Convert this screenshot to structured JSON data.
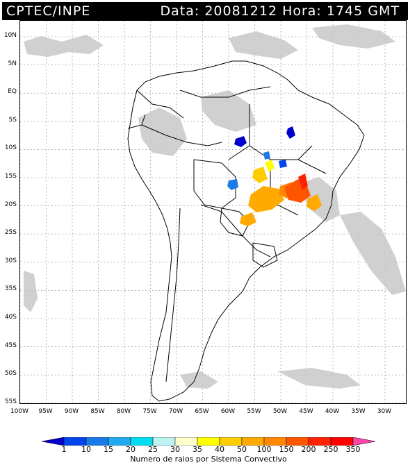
{
  "header": {
    "left": "CPTEC/INPE",
    "right": "Data: 20081212 Hora: 1745 GMT"
  },
  "map": {
    "lat_labels": [
      "10N",
      "5N",
      "EQ",
      "5S",
      "10S",
      "15S",
      "20S",
      "25S",
      "30S",
      "35S",
      "40S",
      "45S",
      "50S",
      "55S"
    ],
    "lon_labels": [
      "100W",
      "95W",
      "90W",
      "85W",
      "80W",
      "75W",
      "70W",
      "65W",
      "60W",
      "55W",
      "50W",
      "45W",
      "40W",
      "35W",
      "30W"
    ],
    "colors": {
      "cloud": "#c8c8c8",
      "coast": "#000000",
      "grid": "#888888"
    }
  },
  "colorbar": {
    "labels": [
      "1",
      "10",
      "15",
      "20",
      "25",
      "30",
      "35",
      "40",
      "50",
      "100",
      "150",
      "200",
      "250",
      "350"
    ],
    "colors": [
      "#0000cc",
      "#0044ee",
      "#1a7ae8",
      "#22aaee",
      "#00ddee",
      "#bff3f3",
      "#ffffcc",
      "#ffff00",
      "#ffcc00",
      "#ffaa00",
      "#ff8800",
      "#ff5500",
      "#ff2200",
      "#ff0000",
      "#ff44aa"
    ],
    "title": "Numero de raios por Sistema Convectivo"
  }
}
